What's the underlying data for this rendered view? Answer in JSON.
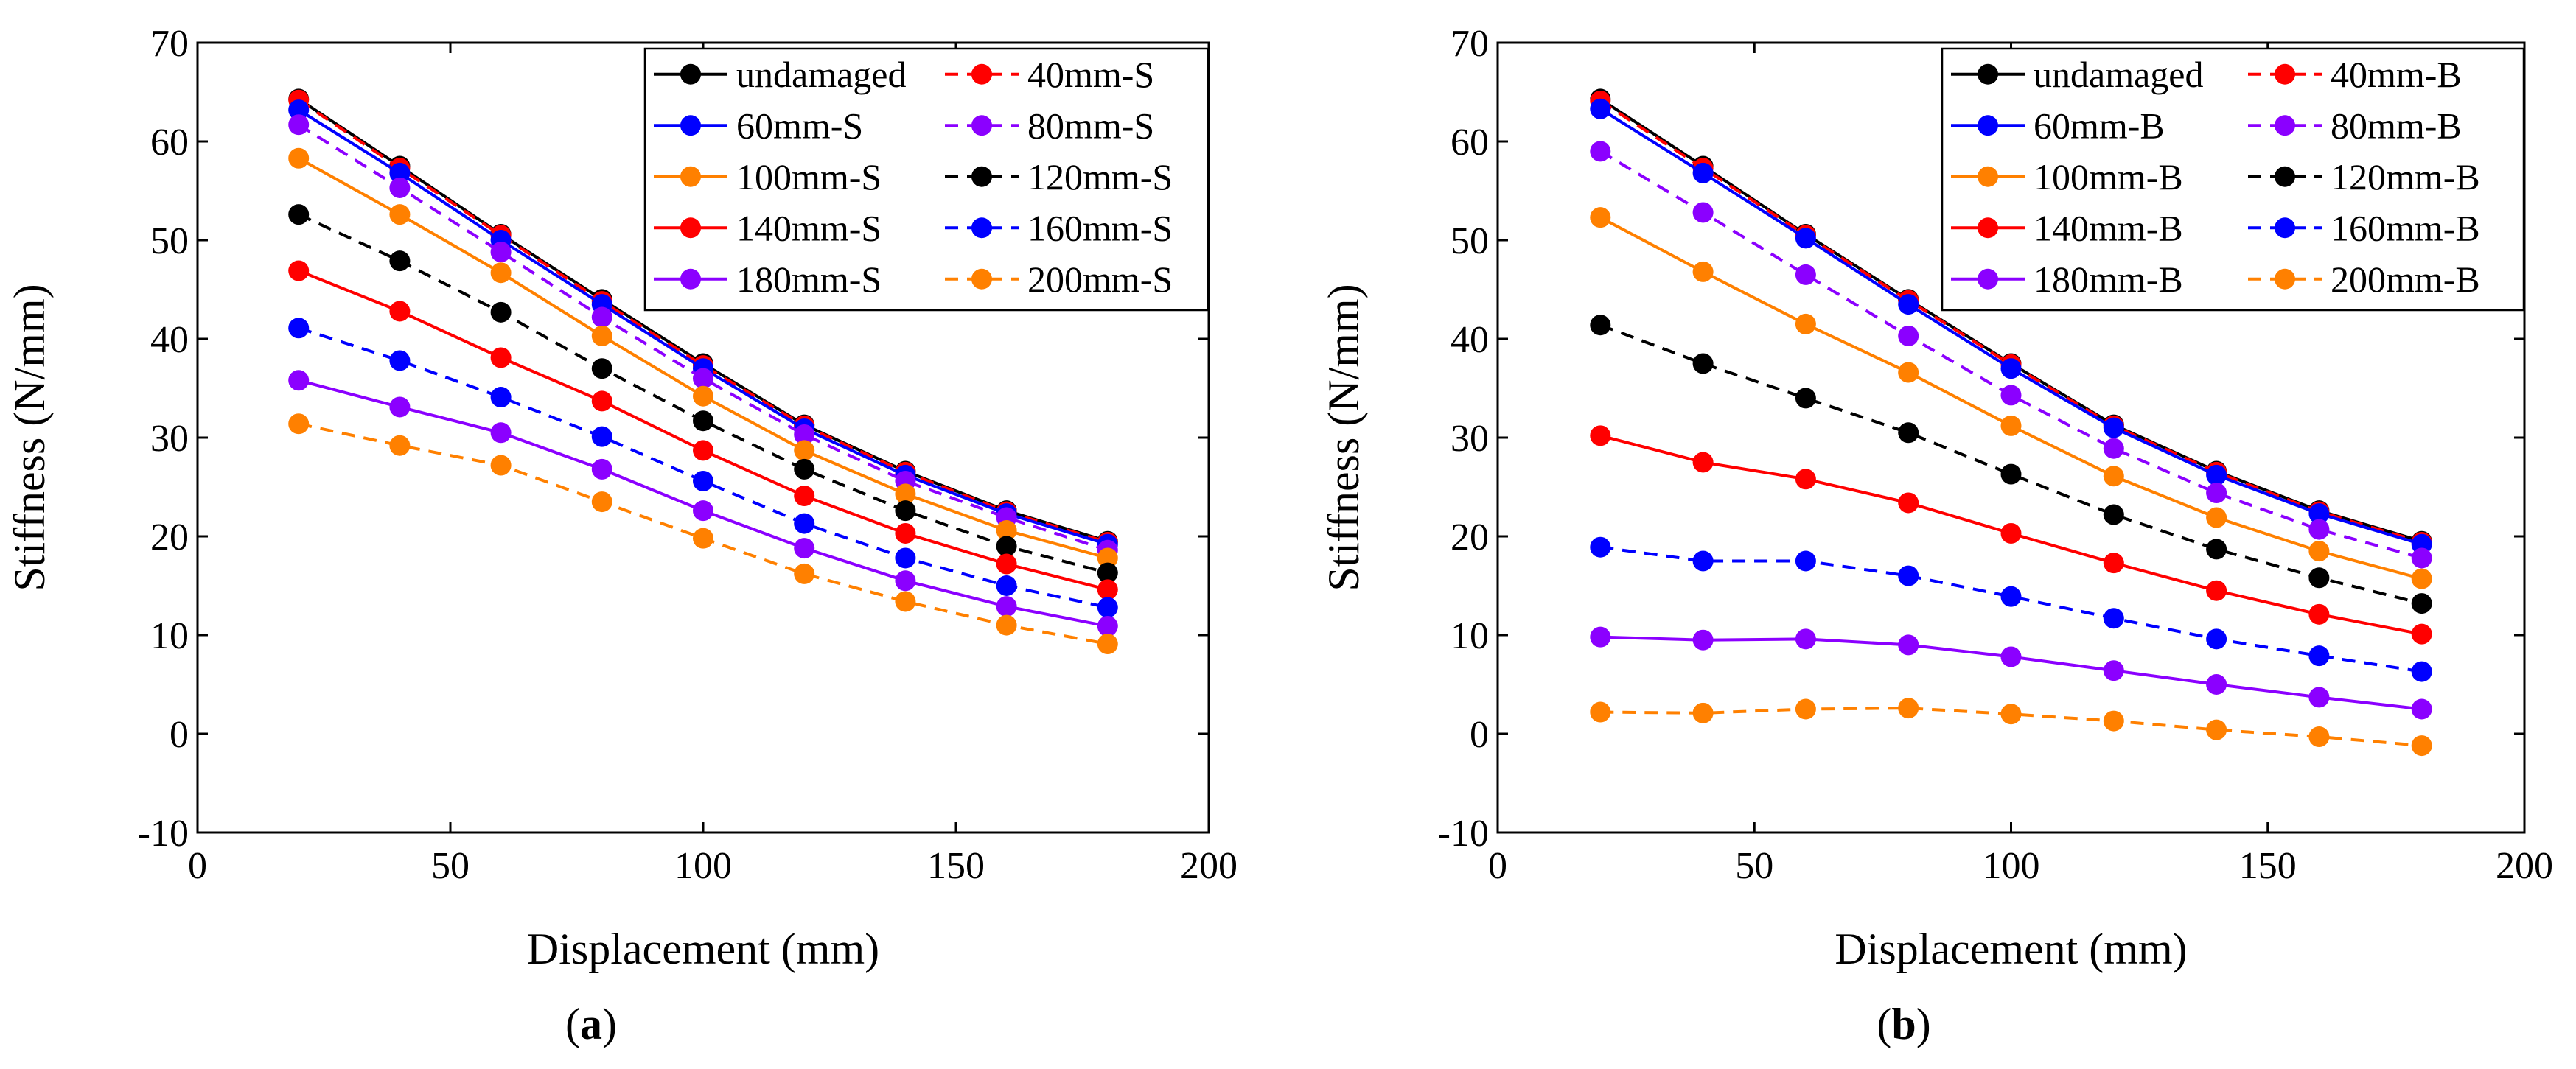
{
  "x_categories": [
    20,
    40,
    60,
    80,
    100,
    120,
    140,
    160,
    180
  ],
  "chart_data": [
    {
      "type": "line",
      "panel_label": "a",
      "xlabel": "Displacement (mm)",
      "ylabel": "Stiffness (N/mm)",
      "xlim": [
        0,
        200
      ],
      "ylim": [
        -10,
        70
      ],
      "xticks": [
        0,
        50,
        100,
        150,
        200
      ],
      "yticks": [
        -10,
        0,
        10,
        20,
        30,
        40,
        50,
        60,
        70
      ],
      "grid": false,
      "legend": "top-right, 2 columns",
      "x": [
        20,
        40,
        60,
        80,
        100,
        120,
        140,
        160,
        180
      ],
      "series": [
        {
          "name": "undamaged",
          "color": "#000000",
          "dash": "solid",
          "values": [
            64.3,
            57.5,
            50.6,
            44.0,
            37.5,
            31.3,
            26.6,
            22.6,
            19.5
          ]
        },
        {
          "name": "40mm-S",
          "color": "#ff0000",
          "dash": "dashed",
          "values": [
            64.2,
            57.3,
            50.5,
            43.8,
            37.3,
            31.2,
            26.5,
            22.5,
            19.4
          ]
        },
        {
          "name": "60mm-S",
          "color": "#0000ff",
          "dash": "solid",
          "values": [
            63.2,
            56.8,
            50.0,
            43.5,
            37.0,
            30.9,
            26.2,
            22.3,
            19.2
          ]
        },
        {
          "name": "80mm-S",
          "color": "#8b00ff",
          "dash": "dashed",
          "values": [
            61.7,
            55.3,
            48.8,
            42.2,
            36.0,
            30.3,
            25.6,
            21.9,
            18.6
          ]
        },
        {
          "name": "100mm-S",
          "color": "#ff8000",
          "dash": "solid",
          "values": [
            58.3,
            52.6,
            46.7,
            40.3,
            34.2,
            28.7,
            24.3,
            20.6,
            17.8
          ]
        },
        {
          "name": "120mm-S",
          "color": "#000000",
          "dash": "dashed",
          "values": [
            52.6,
            47.9,
            42.7,
            37.0,
            31.7,
            26.8,
            22.6,
            19.0,
            16.3
          ]
        },
        {
          "name": "140mm-S",
          "color": "#ff0000",
          "dash": "solid",
          "values": [
            46.9,
            42.8,
            38.1,
            33.7,
            28.7,
            24.1,
            20.3,
            17.2,
            14.6
          ]
        },
        {
          "name": "160mm-S",
          "color": "#0000ff",
          "dash": "dashed",
          "values": [
            41.1,
            37.8,
            34.1,
            30.1,
            25.6,
            21.3,
            17.8,
            15.0,
            12.8
          ]
        },
        {
          "name": "180mm-S",
          "color": "#8b00ff",
          "dash": "solid",
          "values": [
            35.8,
            33.1,
            30.5,
            26.8,
            22.6,
            18.8,
            15.5,
            12.9,
            10.9
          ]
        },
        {
          "name": "200mm-S",
          "color": "#ff8000",
          "dash": "dashed",
          "values": [
            31.4,
            29.2,
            27.2,
            23.5,
            19.8,
            16.2,
            13.4,
            11.0,
            9.1
          ]
        }
      ]
    },
    {
      "type": "line",
      "panel_label": "b",
      "xlabel": "Displacement (mm)",
      "ylabel": "Stiffness (N/mm)",
      "xlim": [
        0,
        200
      ],
      "ylim": [
        -10,
        70
      ],
      "xticks": [
        0,
        50,
        100,
        150,
        200
      ],
      "yticks": [
        -10,
        0,
        10,
        20,
        30,
        40,
        50,
        60,
        70
      ],
      "grid": false,
      "legend": "top-right, 2 columns",
      "x": [
        20,
        40,
        60,
        80,
        100,
        120,
        140,
        160,
        180
      ],
      "series": [
        {
          "name": "undamaged",
          "color": "#000000",
          "dash": "solid",
          "values": [
            64.3,
            57.5,
            50.6,
            44.0,
            37.5,
            31.3,
            26.6,
            22.6,
            19.5
          ]
        },
        {
          "name": "40mm-B",
          "color": "#ff0000",
          "dash": "dashed",
          "values": [
            64.1,
            57.3,
            50.5,
            43.9,
            37.4,
            31.2,
            26.5,
            22.5,
            19.4
          ]
        },
        {
          "name": "60mm-B",
          "color": "#0000ff",
          "dash": "solid",
          "values": [
            63.3,
            56.8,
            50.2,
            43.5,
            37.0,
            31.0,
            26.2,
            22.3,
            19.2
          ]
        },
        {
          "name": "80mm-B",
          "color": "#8b00ff",
          "dash": "dashed",
          "values": [
            59.0,
            52.8,
            46.5,
            40.3,
            34.3,
            28.9,
            24.4,
            20.7,
            17.8
          ]
        },
        {
          "name": "100mm-B",
          "color": "#ff8000",
          "dash": "solid",
          "values": [
            52.3,
            46.8,
            41.5,
            36.6,
            31.2,
            26.1,
            21.9,
            18.5,
            15.7
          ]
        },
        {
          "name": "120mm-B",
          "color": "#000000",
          "dash": "dashed",
          "values": [
            41.4,
            37.5,
            34.0,
            30.5,
            26.3,
            22.2,
            18.7,
            15.8,
            13.2
          ]
        },
        {
          "name": "140mm-B",
          "color": "#ff0000",
          "dash": "solid",
          "values": [
            30.2,
            27.5,
            25.8,
            23.4,
            20.3,
            17.3,
            14.5,
            12.1,
            10.1
          ]
        },
        {
          "name": "160mm-B",
          "color": "#0000ff",
          "dash": "dashed",
          "values": [
            18.9,
            17.5,
            17.5,
            16.0,
            13.9,
            11.7,
            9.6,
            7.9,
            6.3
          ]
        },
        {
          "name": "180mm-B",
          "color": "#8b00ff",
          "dash": "solid",
          "values": [
            9.8,
            9.5,
            9.6,
            9.0,
            7.8,
            6.4,
            5.0,
            3.7,
            2.5
          ]
        },
        {
          "name": "200mm-B",
          "color": "#ff8000",
          "dash": "dashed",
          "values": [
            2.2,
            2.1,
            2.5,
            2.6,
            2.0,
            1.3,
            0.4,
            -0.3,
            -1.2
          ]
        }
      ]
    }
  ]
}
